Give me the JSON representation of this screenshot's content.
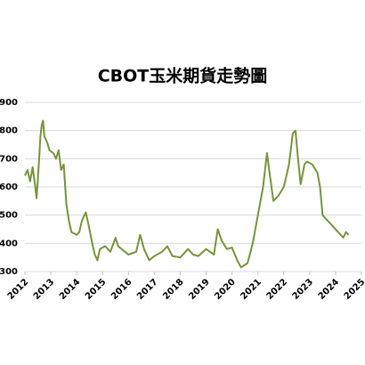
{
  "chart_data": {
    "type": "line",
    "title": "CBOT玉米期貨走勢圖",
    "x": [
      2012.0,
      2012.1,
      2012.2,
      2012.3,
      2012.4,
      2012.45,
      2012.55,
      2012.6,
      2012.65,
      2012.7,
      2012.75,
      2012.85,
      2012.95,
      2013.1,
      2013.2,
      2013.3,
      2013.4,
      2013.5,
      2013.6,
      2013.7,
      2013.8,
      2014.0,
      2014.1,
      2014.2,
      2014.35,
      2014.45,
      2014.6,
      2014.7,
      2014.8,
      2014.9,
      2015.1,
      2015.3,
      2015.5,
      2015.6,
      2015.8,
      2016.0,
      2016.3,
      2016.45,
      2016.6,
      2016.8,
      2017.0,
      2017.3,
      2017.5,
      2017.7,
      2018.0,
      2018.3,
      2018.5,
      2018.7,
      2019.0,
      2019.3,
      2019.45,
      2019.6,
      2019.8,
      2020.0,
      2020.2,
      2020.35,
      2020.6,
      2020.8,
      2021.0,
      2021.2,
      2021.35,
      2021.45,
      2021.6,
      2021.8,
      2022.0,
      2022.2,
      2022.35,
      2022.45,
      2022.55,
      2022.65,
      2022.8,
      2022.9,
      2023.1,
      2023.3,
      2023.4,
      2023.5,
      2023.7,
      2023.9,
      2024.1,
      2024.3,
      2024.4,
      2024.5
    ],
    "series": [
      {
        "color": "#77933c",
        "values": [
          640,
          660,
          620,
          670,
          600,
          560,
          700,
          780,
          820,
          835,
          780,
          760,
          730,
          720,
          700,
          730,
          660,
          680,
          540,
          480,
          440,
          430,
          440,
          480,
          510,
          470,
          400,
          360,
          340,
          380,
          390,
          370,
          420,
          390,
          375,
          360,
          370,
          430,
          380,
          340,
          355,
          370,
          390,
          355,
          350,
          380,
          360,
          355,
          380,
          360,
          450,
          410,
          380,
          385,
          340,
          315,
          330,
          400,
          500,
          600,
          720,
          650,
          550,
          570,
          600,
          680,
          790,
          800,
          700,
          610,
          680,
          690,
          680,
          650,
          600,
          500,
          480,
          460,
          440,
          420,
          440,
          430
        ]
      }
    ],
    "xlim": [
      2012,
      2025
    ],
    "xticks": [
      2012,
      2013,
      2014,
      2015,
      2016,
      2017,
      2018,
      2019,
      2020,
      2021,
      2022,
      2023,
      2024,
      2025
    ],
    "ylim": [
      300,
      900
    ],
    "yticks": [
      300,
      400,
      500,
      600,
      700,
      800,
      900
    ],
    "grid": true
  }
}
